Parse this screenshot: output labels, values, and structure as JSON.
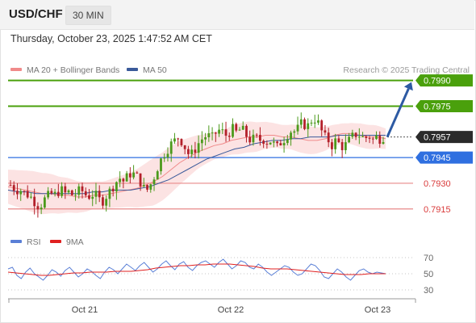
{
  "header": {
    "symbol": "USD/CHF",
    "interval": "30 MIN"
  },
  "datetime": "Thursday, October 23, 2025 1:47:52 AM CET",
  "legend_main": [
    {
      "label": "MA 20 + Bollinger Bands",
      "color": "#f08a8a"
    },
    {
      "label": "MA 50",
      "color": "#3a5a9a"
    }
  ],
  "copyright": "Research © 2025 Trading Central",
  "legend_rsi": [
    {
      "label": "RSI",
      "color": "#5a7fd6"
    },
    {
      "label": "9MA",
      "color": "#e02020"
    }
  ],
  "colors": {
    "resistance": "#4aa00c",
    "pivot": "#2f6fe0",
    "support": "#e88a8a",
    "current": "#2b2b2b",
    "arrow": "#2d5aa3",
    "candle_up": "#4c9a1c",
    "candle_down": "#b3202a",
    "bollinger_fill": "#fbdada"
  },
  "chart_data": [
    {
      "type": "candlestick",
      "interval": "30 MIN",
      "x_ticks": [
        "Oct 21",
        "Oct 22",
        "Oct 23"
      ],
      "ylim": [
        0.7905,
        0.7995
      ],
      "levels": [
        {
          "value": 0.799,
          "label": "0.7990",
          "kind": "resistance"
        },
        {
          "value": 0.7975,
          "label": "0.7975",
          "kind": "resistance"
        },
        {
          "value": 0.7957,
          "label": "0.7957",
          "kind": "current"
        },
        {
          "value": 0.7945,
          "label": "0.7945",
          "kind": "pivot"
        },
        {
          "value": 0.793,
          "label": "0.7930",
          "kind": "support"
        },
        {
          "value": 0.7915,
          "label": "0.7915",
          "kind": "support"
        }
      ],
      "close_path": [
        0.7929,
        0.7927,
        0.7926,
        0.7926,
        0.7924,
        0.7923,
        0.7921,
        0.7918,
        0.7916,
        0.792,
        0.7922,
        0.7924,
        0.7923,
        0.7925,
        0.7926,
        0.7924,
        0.7925,
        0.7923,
        0.7924,
        0.7926,
        0.7925,
        0.7922,
        0.7923,
        0.7924,
        0.7921,
        0.7919,
        0.7922,
        0.7925,
        0.7928,
        0.7931,
        0.7933,
        0.7931,
        0.7934,
        0.7936,
        0.7935,
        0.7933,
        0.7929,
        0.7925,
        0.7928,
        0.7932,
        0.7938,
        0.7943,
        0.7947,
        0.795,
        0.7953,
        0.7955,
        0.7957,
        0.7954,
        0.795,
        0.7946,
        0.7948,
        0.7952,
        0.7955,
        0.7957,
        0.7958,
        0.7956,
        0.7959,
        0.7961,
        0.796,
        0.7958,
        0.796,
        0.7962,
        0.7959,
        0.7962,
        0.796,
        0.7956,
        0.7955,
        0.7957,
        0.7955,
        0.7956,
        0.7954,
        0.7955,
        0.7953,
        0.7951,
        0.7954,
        0.7956,
        0.7959,
        0.7961,
        0.796,
        0.7963,
        0.7966,
        0.7962,
        0.7966,
        0.7968,
        0.7966,
        0.7961,
        0.7957,
        0.7955,
        0.7952,
        0.7955,
        0.7953,
        0.7951,
        0.7953,
        0.7956,
        0.7958,
        0.7959,
        0.7957,
        0.7956,
        0.7958,
        0.7955,
        0.7957,
        0.7956,
        0.7957
      ],
      "ma20_path": [
        0.7928,
        0.7927,
        0.7926,
        0.7925,
        0.7924,
        0.7924,
        0.7923,
        0.7923,
        0.7922,
        0.7922,
        0.7923,
        0.7923,
        0.7924,
        0.7925,
        0.7926,
        0.7927,
        0.7929,
        0.7931,
        0.7934,
        0.7938,
        0.7942,
        0.7945,
        0.7948,
        0.795,
        0.7952,
        0.7953,
        0.7955,
        0.7956,
        0.7957,
        0.7957,
        0.7958,
        0.7958,
        0.7957,
        0.7957,
        0.7956,
        0.7955,
        0.7955,
        0.7956,
        0.7958,
        0.7959,
        0.7959,
        0.7958,
        0.7957,
        0.7957,
        0.7956
      ],
      "ma50_path": [
        0.7926,
        0.7925,
        0.7925,
        0.7924,
        0.7924,
        0.7924,
        0.7924,
        0.7924,
        0.7924,
        0.7925,
        0.7925,
        0.7926,
        0.7926,
        0.7926,
        0.7927,
        0.7928,
        0.793,
        0.7932,
        0.7935,
        0.7938,
        0.7941,
        0.7944,
        0.7946,
        0.7948,
        0.795,
        0.7951,
        0.7953,
        0.7954,
        0.7955,
        0.7955,
        0.7956,
        0.7956,
        0.7957,
        0.7957,
        0.7957,
        0.7958,
        0.7958,
        0.7958,
        0.7958,
        0.7958,
        0.7958
      ],
      "bollinger_width": [
        0.001,
        0.0011,
        0.0012,
        0.0012,
        0.0011,
        0.001,
        0.0009,
        0.0008,
        0.0008,
        0.0009,
        0.001,
        0.0012,
        0.0014,
        0.0014,
        0.0013,
        0.0011,
        0.0009,
        0.0008,
        0.0008,
        0.0009,
        0.0009,
        0.0008,
        0.0007,
        0.0007,
        0.0008,
        0.0008,
        0.0007,
        0.0006,
        0.0006,
        0.0007,
        0.0007,
        0.0006
      ],
      "forecast_arrow": {
        "from": 0.7957,
        "to": 0.799
      }
    },
    {
      "type": "line",
      "name": "RSI",
      "y_ticks": [
        70,
        50,
        30
      ],
      "ylim": [
        25,
        78
      ],
      "series": [
        {
          "name": "RSI",
          "values": [
            56,
            58,
            48,
            44,
            52,
            57,
            50,
            46,
            42,
            48,
            55,
            52,
            47,
            54,
            58,
            52,
            46,
            50,
            56,
            53,
            48,
            44,
            52,
            58,
            55,
            50,
            56,
            62,
            58,
            54,
            60,
            64,
            58,
            52,
            56,
            62,
            66,
            60,
            55,
            62,
            65,
            58,
            54,
            60,
            64,
            66,
            62,
            58,
            64,
            68,
            62,
            56,
            60,
            66,
            64,
            58,
            56,
            62,
            58,
            52,
            48,
            52,
            56,
            60,
            58,
            52,
            48,
            50,
            56,
            62,
            60,
            54,
            46,
            44,
            50,
            56,
            52,
            46,
            42,
            48,
            54,
            56,
            52,
            50,
            52,
            51,
            50
          ]
        },
        {
          "name": "9MA",
          "values": [
            52,
            51,
            50,
            49,
            48,
            48,
            49,
            50,
            51,
            51,
            52,
            52,
            52,
            53,
            53,
            53,
            54,
            55,
            57,
            58,
            59,
            60,
            60,
            61,
            61,
            62,
            62,
            62,
            61,
            60,
            59,
            57,
            56,
            56,
            56,
            55,
            54,
            53,
            52,
            51,
            50,
            49,
            49,
            49,
            50,
            50,
            50
          ]
        }
      ]
    }
  ]
}
